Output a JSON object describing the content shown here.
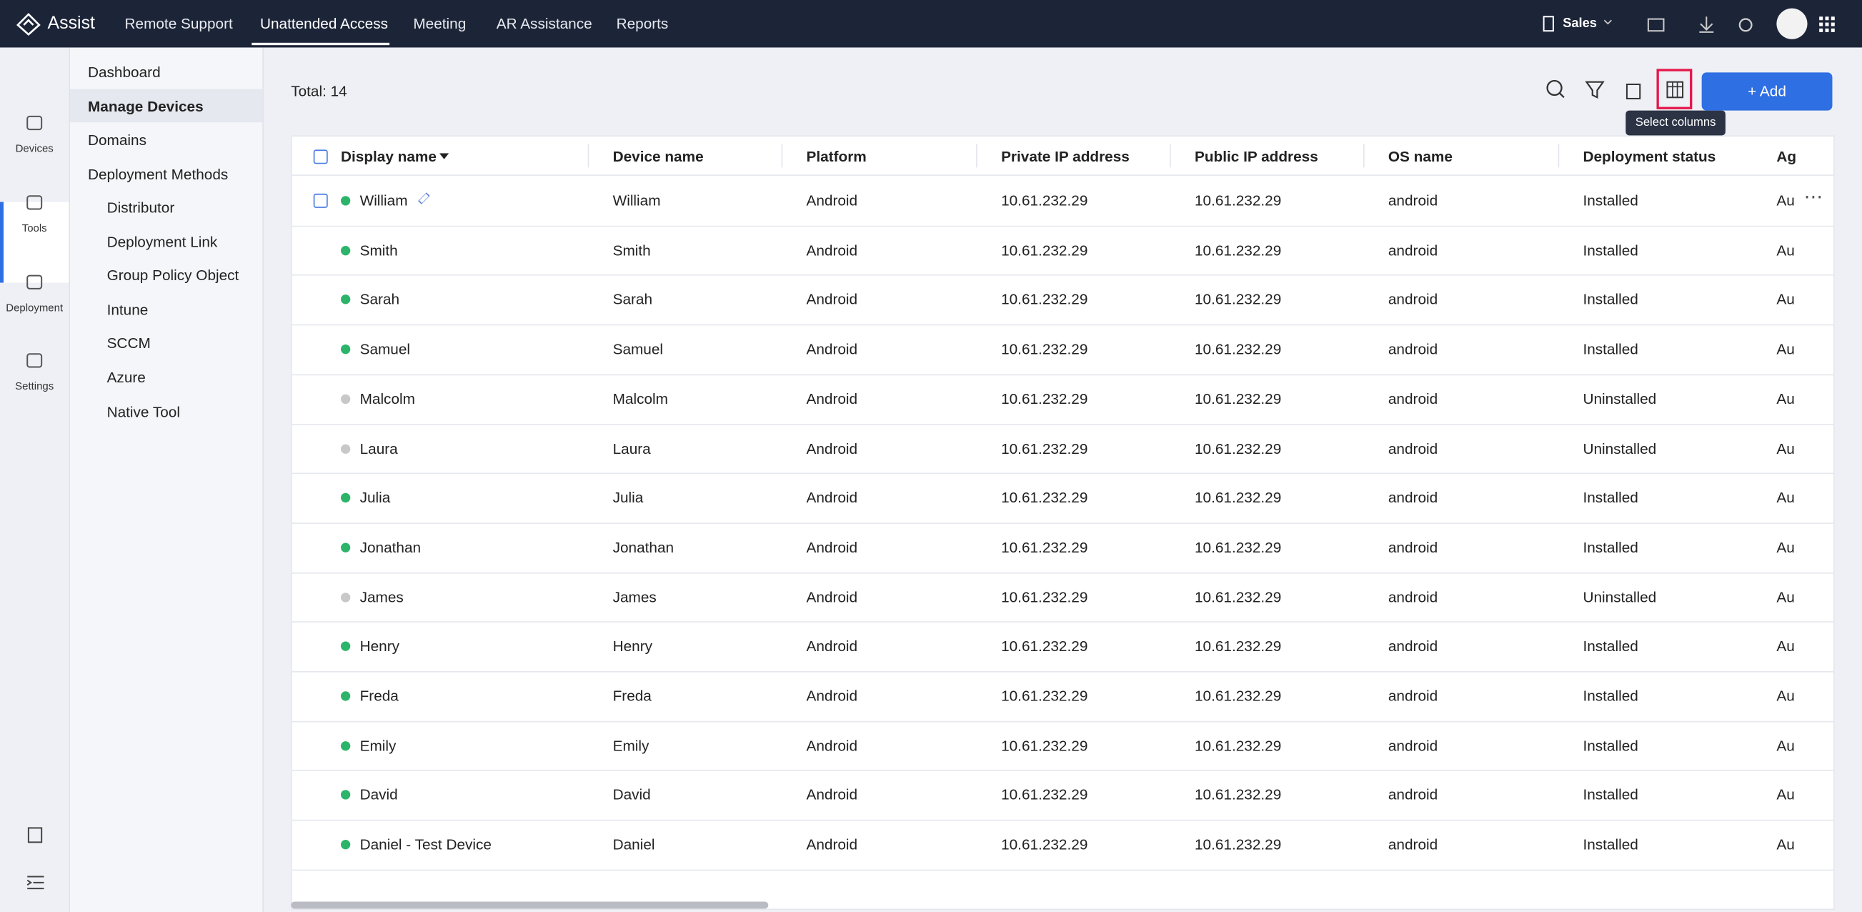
{
  "header": {
    "brand": "Assist",
    "tabs": [
      "Remote Support",
      "Unattended Access",
      "Meeting",
      "AR Assistance",
      "Reports"
    ],
    "org": "Sales"
  },
  "rail": [
    "Devices",
    "Tools",
    "Deployment",
    "Settings"
  ],
  "menu": {
    "items": [
      "Dashboard",
      "Manage Devices",
      "Domains",
      "Deployment Methods"
    ],
    "sub": [
      "Distributor",
      "Deployment Link",
      "Group Policy Object",
      "Intune",
      "SCCM",
      "Azure",
      "Native Tool"
    ]
  },
  "toolbar": {
    "total": "Total: 14",
    "tooltip": "Select columns",
    "add": "+ Add"
  },
  "table": {
    "columns": [
      "Display name",
      "Device name",
      "Platform",
      "Private IP address",
      "Public IP address",
      "OS name",
      "Deployment status",
      "Ag"
    ],
    "rows": [
      {
        "dot": "#2db46b",
        "cells": [
          "William",
          "William",
          "Android",
          "10.61.232.29",
          "10.61.232.29",
          "android",
          "Installed",
          "Au"
        ]
      },
      {
        "dot": "#2db46b",
        "cells": [
          "Smith",
          "Smith",
          "Android",
          "10.61.232.29",
          "10.61.232.29",
          "android",
          "Installed",
          "Au"
        ]
      },
      {
        "dot": "#2db46b",
        "cells": [
          "Sarah",
          "Sarah",
          "Android",
          "10.61.232.29",
          "10.61.232.29",
          "android",
          "Installed",
          "Au"
        ]
      },
      {
        "dot": "#2db46b",
        "cells": [
          "Samuel",
          "Samuel",
          "Android",
          "10.61.232.29",
          "10.61.232.29",
          "android",
          "Installed",
          "Au"
        ]
      },
      {
        "dot": "#c8c8c8",
        "cells": [
          "Malcolm",
          "Malcolm",
          "Android",
          "10.61.232.29",
          "10.61.232.29",
          "android",
          "Uninstalled",
          "Au"
        ]
      },
      {
        "dot": "#c8c8c8",
        "cells": [
          "Laura",
          "Laura",
          "Android",
          "10.61.232.29",
          "10.61.232.29",
          "android",
          "Uninstalled",
          "Au"
        ]
      },
      {
        "dot": "#2db46b",
        "cells": [
          "Julia",
          "Julia",
          "Android",
          "10.61.232.29",
          "10.61.232.29",
          "android",
          "Installed",
          "Au"
        ]
      },
      {
        "dot": "#2db46b",
        "cells": [
          "Jonathan",
          "Jonathan",
          "Android",
          "10.61.232.29",
          "10.61.232.29",
          "android",
          "Installed",
          "Au"
        ]
      },
      {
        "dot": "#c8c8c8",
        "cells": [
          "James",
          "James",
          "Android",
          "10.61.232.29",
          "10.61.232.29",
          "android",
          "Uninstalled",
          "Au"
        ]
      },
      {
        "dot": "#2db46b",
        "cells": [
          "Henry",
          "Henry",
          "Android",
          "10.61.232.29",
          "10.61.232.29",
          "android",
          "Installed",
          "Au"
        ]
      },
      {
        "dot": "#2db46b",
        "cells": [
          "Freda",
          "Freda",
          "Android",
          "10.61.232.29",
          "10.61.232.29",
          "android",
          "Installed",
          "Au"
        ]
      },
      {
        "dot": "#2db46b",
        "cells": [
          "Emily",
          "Emily",
          "Android",
          "10.61.232.29",
          "10.61.232.29",
          "android",
          "Installed",
          "Au"
        ]
      },
      {
        "dot": "#2db46b",
        "cells": [
          "David",
          "David",
          "Android",
          "10.61.232.29",
          "10.61.232.29",
          "android",
          "Installed",
          "Au"
        ]
      },
      {
        "dot": "#2db46b",
        "cells": [
          "Daniel - Test Device",
          "Daniel",
          "Android",
          "10.61.232.29",
          "10.61.232.29",
          "android",
          "Installed",
          "Au"
        ]
      }
    ]
  }
}
